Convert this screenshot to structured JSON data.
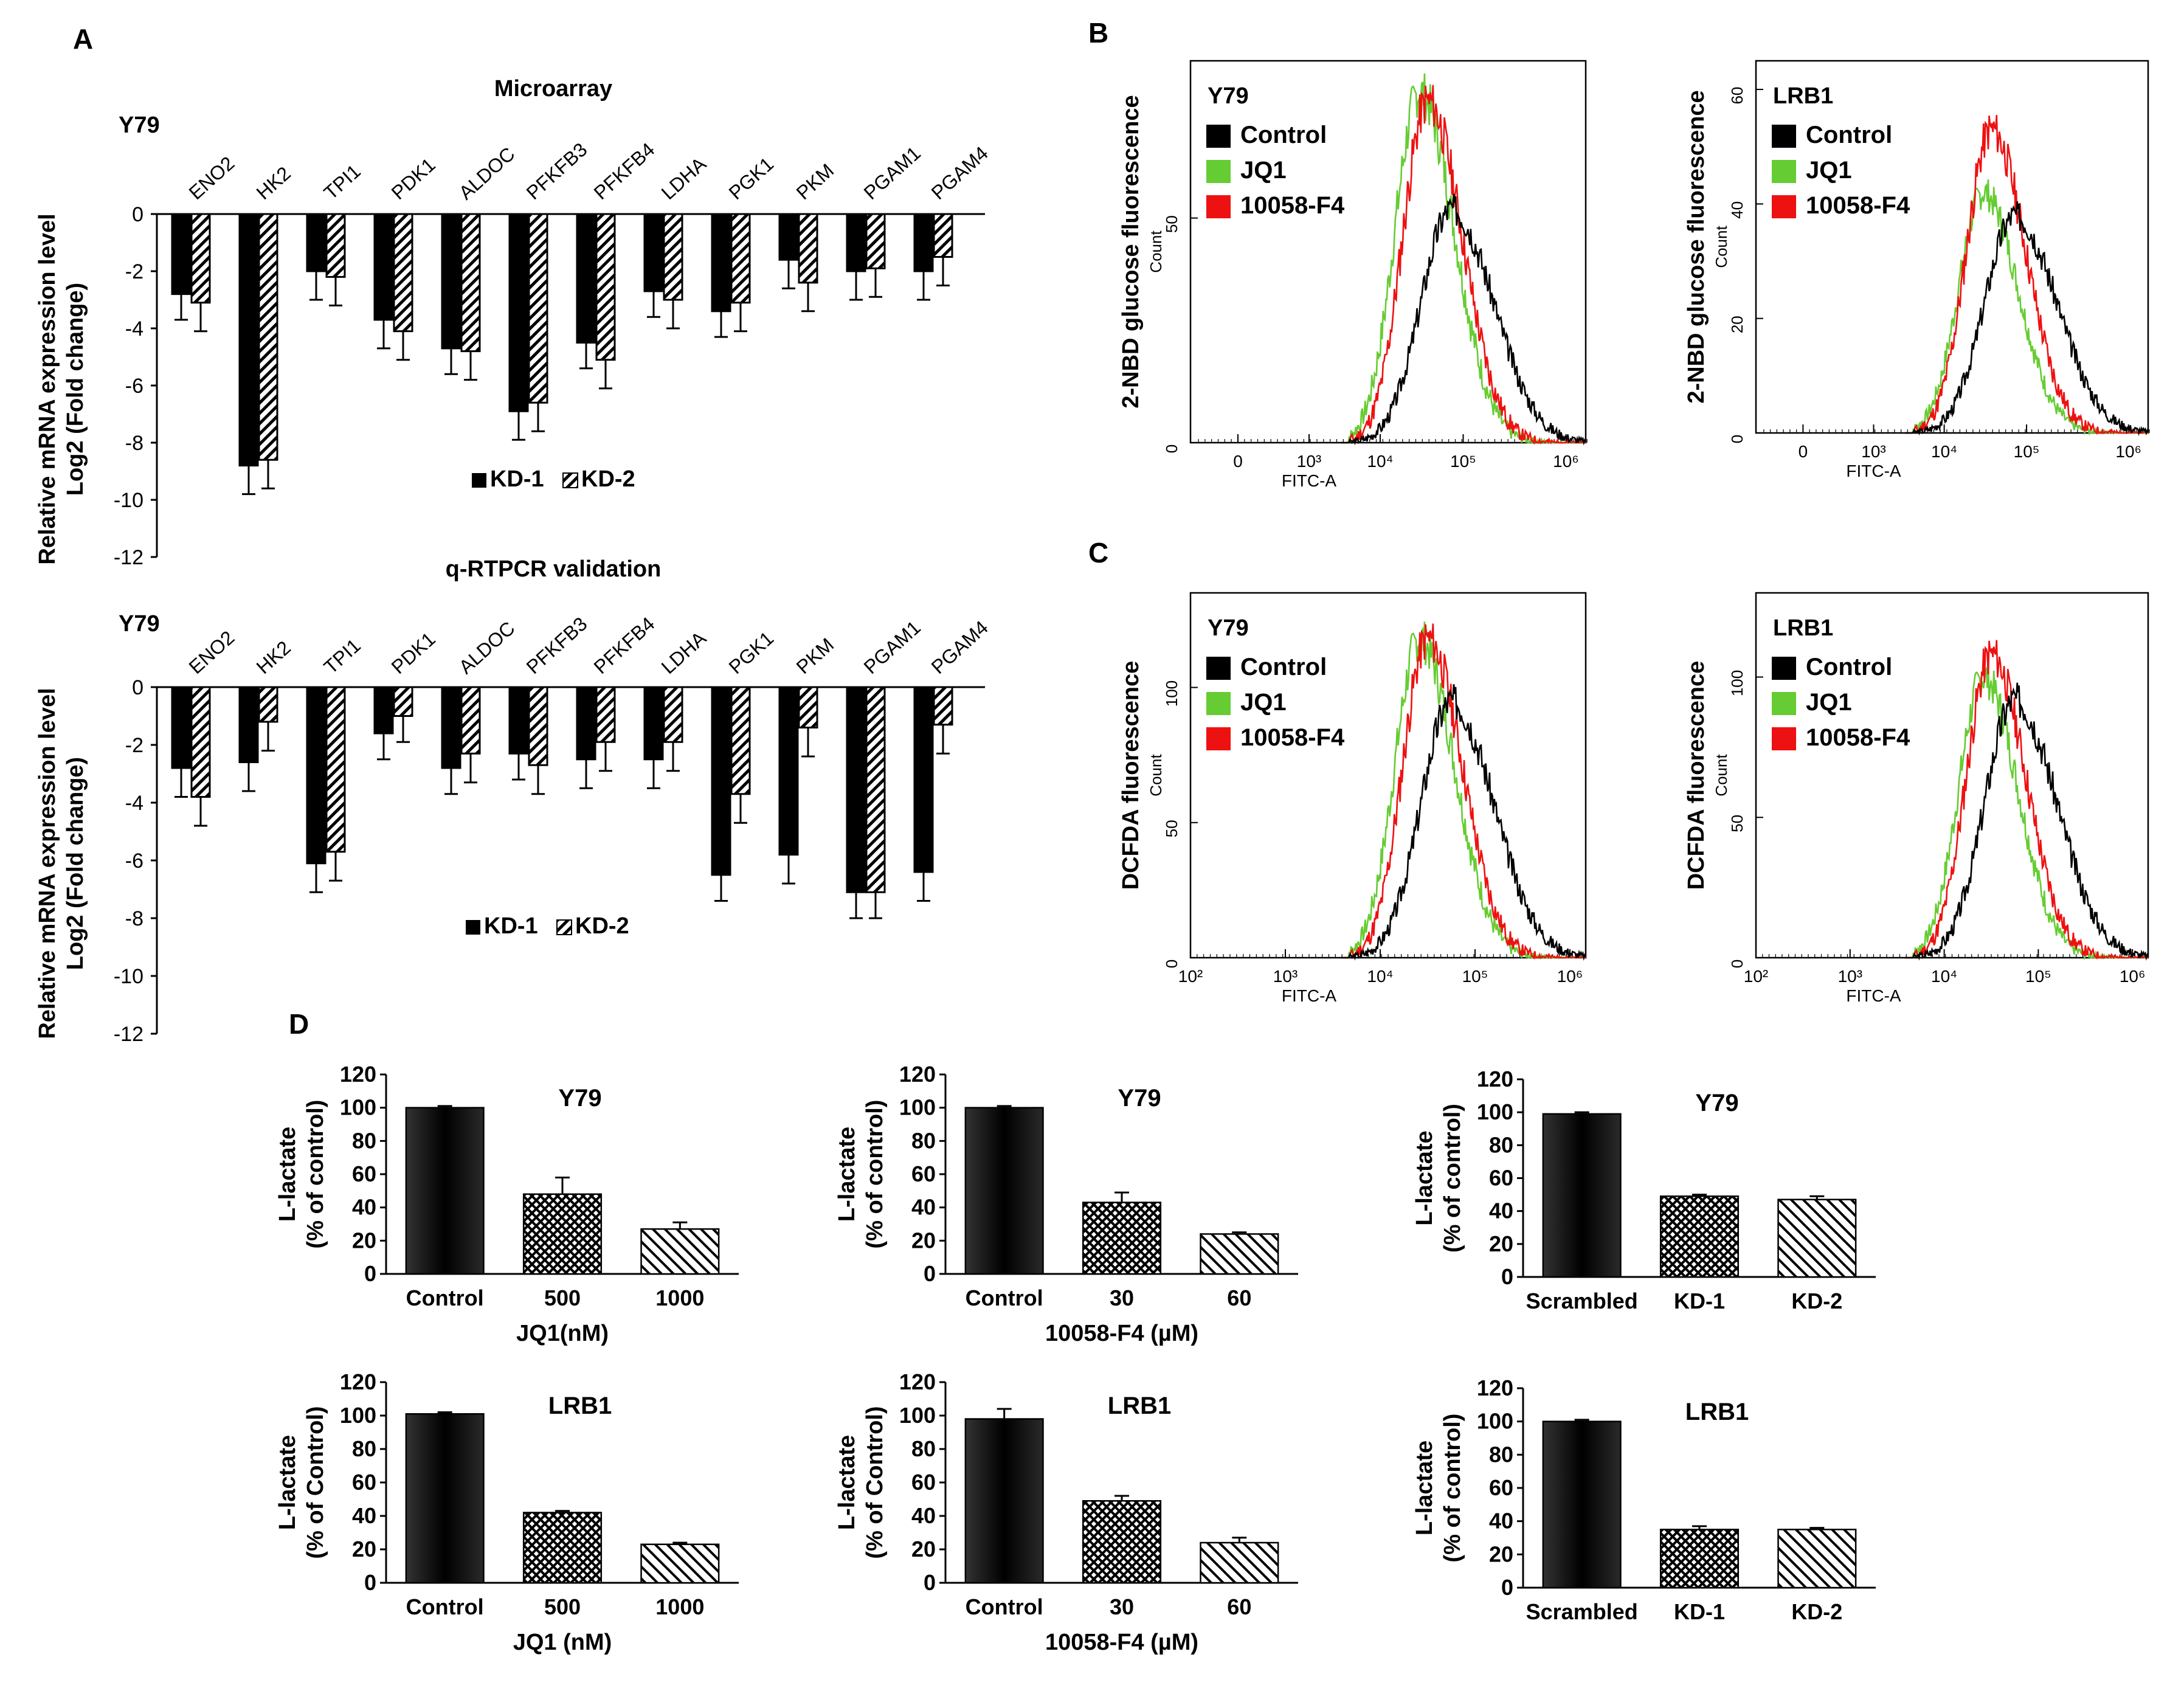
{
  "panels": {
    "A": "A",
    "B": "B",
    "C": "C",
    "D": "D"
  },
  "colors": {
    "control": "#000000",
    "jq1": "#66cc33",
    "f4": "#ee1111",
    "bar_dark": "#111111"
  },
  "chart_data": [
    {
      "id": "A1",
      "type": "bar",
      "title": "Microarray",
      "cell_line": "Y79",
      "ylabel": "Relative mRNA expression level\nLog2 (Fold change)",
      "ylim": [
        -12,
        0
      ],
      "yticks": [
        "0",
        "-2",
        "-4",
        "-6",
        "-8",
        "-10",
        "-12"
      ],
      "categories": [
        "ENO2",
        "HK2",
        "TPI1",
        "PDK1",
        "ALDOC",
        "PFKFB3",
        "PFKFB4",
        "LDHA",
        "PGK1",
        "PKM",
        "PGAM1",
        "PGAM4"
      ],
      "series": [
        {
          "name": "KD-1",
          "values": [
            -2.8,
            -8.8,
            -2.0,
            -3.7,
            -4.7,
            -6.9,
            -4.5,
            -2.7,
            -3.4,
            -1.6,
            -2.0,
            -2.0
          ],
          "err": [
            0.9,
            1.0,
            1.0,
            1.0,
            0.9,
            1.0,
            0.9,
            0.9,
            0.9,
            1.0,
            1.0,
            1.0
          ]
        },
        {
          "name": "KD-2",
          "values": [
            -3.1,
            -8.6,
            -2.2,
            -4.1,
            -4.8,
            -6.6,
            -5.1,
            -3.0,
            -3.1,
            -2.4,
            -1.9,
            -1.5
          ],
          "err": [
            1.0,
            1.0,
            1.0,
            1.0,
            1.0,
            1.0,
            1.0,
            1.0,
            1.0,
            1.0,
            1.0,
            1.0
          ]
        }
      ],
      "legend": [
        "KD-1",
        "KD-2"
      ]
    },
    {
      "id": "A2",
      "type": "bar",
      "title": "q-RTPCR validation",
      "cell_line": "Y79",
      "ylabel": "Relative mRNA expression level\nLog2 (Fold change)",
      "ylim": [
        -12,
        0
      ],
      "yticks": [
        "0",
        "-2",
        "-4",
        "-6",
        "-8",
        "-10",
        "-12"
      ],
      "categories": [
        "ENO2",
        "HK2",
        "TPI1",
        "PDK1",
        "ALDOC",
        "PFKFB3",
        "PFKFB4",
        "LDHA",
        "PGK1",
        "PKM",
        "PGAM1",
        "PGAM4"
      ],
      "series": [
        {
          "name": "KD-1",
          "values": [
            -2.8,
            -2.6,
            -6.1,
            -1.6,
            -2.8,
            -2.3,
            -2.5,
            -2.5,
            -6.5,
            -5.8,
            -7.1,
            -6.4
          ],
          "err": [
            1.0,
            1.0,
            1.0,
            0.9,
            0.9,
            0.9,
            1.0,
            1.0,
            0.9,
            1.0,
            0.9,
            1.0
          ]
        },
        {
          "name": "KD-2",
          "values": [
            -3.8,
            -1.2,
            -5.7,
            -1.0,
            -2.3,
            -2.7,
            -1.9,
            -1.9,
            -3.7,
            -1.4,
            -7.1,
            -1.3
          ],
          "err": [
            1.0,
            1.0,
            1.0,
            0.9,
            1.0,
            1.0,
            1.0,
            1.0,
            1.0,
            1.0,
            0.9,
            1.0
          ]
        }
      ],
      "legend": [
        "KD-1",
        "KD-2"
      ]
    },
    {
      "id": "B1",
      "type": "line",
      "cell_line": "Y79",
      "ylabel": "2-NBD glucose fluorescence",
      "ylabel_small": "Count",
      "xlabel": "FITC-A",
      "ylim": [
        0,
        85
      ],
      "yticks": [
        "0",
        "50"
      ],
      "ytick_values": [
        0,
        50
      ],
      "xticks": [
        "0",
        "10³",
        "10⁴",
        "10⁵",
        "10⁶"
      ],
      "legend": [
        "Control",
        "JQ1",
        "10058-F4"
      ],
      "peaks": {
        "control": 52,
        "jq1": 78,
        "f4": 76
      }
    },
    {
      "id": "B2",
      "type": "line",
      "cell_line": "LRB1",
      "ylabel": "2-NBD glucose fluorescence",
      "ylabel_small": "Count",
      "xlabel": "FITC-A",
      "ylim": [
        0,
        65
      ],
      "yticks": [
        "0",
        "20",
        "40",
        "60"
      ],
      "ytick_values": [
        0,
        20,
        40,
        60
      ],
      "xticks": [
        "0",
        "10³",
        "10⁴",
        "10⁵",
        "10⁶"
      ],
      "legend": [
        "Control",
        "JQ1",
        "10058-F4"
      ],
      "peaks": {
        "control": 38,
        "jq1": 42,
        "f4": 53
      }
    },
    {
      "id": "C1",
      "type": "line",
      "cell_line": "Y79",
      "ylabel": "DCFDA fluorescence",
      "ylabel_small": "Count",
      "xlabel": "FITC-A",
      "ylim": [
        0,
        135
      ],
      "yticks": [
        "0",
        "50",
        "100"
      ],
      "ytick_values": [
        0,
        50,
        100
      ],
      "xticks": [
        "10²",
        "10³",
        "10⁴",
        "10⁵",
        "10⁶"
      ],
      "legend": [
        "Control",
        "JQ1",
        "10058-F4"
      ],
      "peaks": {
        "control": 95,
        "jq1": 118,
        "f4": 118
      }
    },
    {
      "id": "C2",
      "type": "line",
      "cell_line": "LRB1",
      "ylabel": "DCFDA fluorescence",
      "ylabel_small": "Count",
      "xlabel": "FITC-A",
      "ylim": [
        0,
        130
      ],
      "yticks": [
        "0",
        "50",
        "100"
      ],
      "ytick_values": [
        0,
        50,
        100
      ],
      "xticks": [
        "10²",
        "10³",
        "10⁴",
        "10⁵",
        "10⁶"
      ],
      "legend": [
        "Control",
        "JQ1",
        "10058-F4"
      ],
      "peaks": {
        "control": 92,
        "jq1": 100,
        "f4": 108
      }
    },
    {
      "id": "D1",
      "type": "bar",
      "title": "Y79",
      "ylabel": "L-lactate",
      "ylabel2": "(% of control)",
      "ylim": [
        0,
        120
      ],
      "yticks": [
        "0",
        "20",
        "40",
        "60",
        "80",
        "100",
        "120"
      ],
      "categories": [
        "Control",
        "500",
        "1000"
      ],
      "xlabel": "JQ1(nM)",
      "values": [
        100,
        48,
        27
      ],
      "err": [
        1,
        10,
        4
      ]
    },
    {
      "id": "D2",
      "type": "bar",
      "title": "Y79",
      "ylabel": "L-lactate",
      "ylabel2": "(% of control)",
      "ylim": [
        0,
        120
      ],
      "yticks": [
        "0",
        "20",
        "40",
        "60",
        "80",
        "100",
        "120"
      ],
      "categories": [
        "Control",
        "30",
        "60"
      ],
      "xlabel": "10058-F4 (µM)",
      "values": [
        100,
        43,
        24
      ],
      "err": [
        1,
        6,
        1
      ]
    },
    {
      "id": "D3",
      "type": "bar",
      "title": "Y79",
      "ylabel": "L-lactate",
      "ylabel2": "(% of control)",
      "ylim": [
        0,
        120
      ],
      "yticks": [
        "0",
        "20",
        "40",
        "60",
        "80",
        "100",
        "120"
      ],
      "categories": [
        "Scrambled",
        "KD-1",
        "KD-2"
      ],
      "xlabel": "",
      "values": [
        99,
        49,
        47
      ],
      "err": [
        1,
        1,
        2
      ]
    },
    {
      "id": "D4",
      "type": "bar",
      "title": "LRB1",
      "ylabel": "L-lactate",
      "ylabel2": "(% of Control)",
      "ylim": [
        0,
        120
      ],
      "yticks": [
        "0",
        "20",
        "40",
        "60",
        "80",
        "100",
        "120"
      ],
      "categories": [
        "Control",
        "500",
        "1000"
      ],
      "xlabel": "JQ1 (nM)",
      "values": [
        101,
        42,
        23
      ],
      "err": [
        1,
        1,
        1
      ]
    },
    {
      "id": "D5",
      "type": "bar",
      "title": "LRB1",
      "ylabel": "L-lactate",
      "ylabel2": "(% of Control)",
      "ylim": [
        0,
        120
      ],
      "yticks": [
        "0",
        "20",
        "40",
        "60",
        "80",
        "100",
        "120"
      ],
      "categories": [
        "Control",
        "30",
        "60"
      ],
      "xlabel": "10058-F4 (µM)",
      "values": [
        98,
        49,
        24
      ],
      "err": [
        6,
        3,
        3
      ]
    },
    {
      "id": "D6",
      "type": "bar",
      "title": "LRB1",
      "ylabel": "L-lactate",
      "ylabel2": "(% of control)",
      "ylim": [
        0,
        120
      ],
      "yticks": [
        "0",
        "20",
        "40",
        "60",
        "80",
        "100",
        "120"
      ],
      "categories": [
        "Scrambled",
        "KD-1",
        "KD-2"
      ],
      "xlabel": "",
      "values": [
        100,
        35,
        35
      ],
      "err": [
        1,
        2,
        1
      ]
    }
  ]
}
